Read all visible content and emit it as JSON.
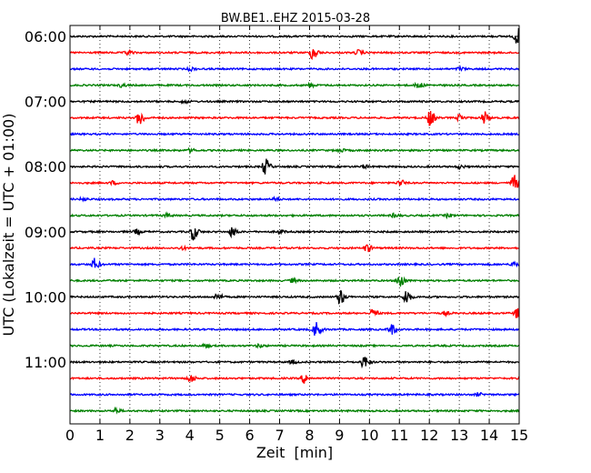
{
  "chart_data": {
    "type": "line",
    "title": "BW.BE1..EHZ 2015-03-28",
    "xlabel": "Zeit  [min]",
    "ylabel": "UTC (Lokalzeit = UTC + 01:00)",
    "xlim": [
      0,
      15
    ],
    "x_ticks": [
      0,
      1,
      2,
      3,
      4,
      5,
      6,
      7,
      8,
      9,
      10,
      11,
      12,
      13,
      14,
      15
    ],
    "x_tick_labels": [
      "0",
      "1",
      "2",
      "3",
      "4",
      "5",
      "6",
      "7",
      "8",
      "9",
      "10",
      "11",
      "12",
      "13",
      "14",
      "15"
    ],
    "y_tick_labels": [
      "06:00",
      "07:00",
      "08:00",
      "09:00",
      "10:00",
      "11:00"
    ],
    "y_tick_rows": [
      0,
      4,
      8,
      12,
      16,
      20
    ],
    "grid": "vertical dotted",
    "trace_colors": [
      "#000000",
      "#ff0000",
      "#0000ff",
      "#008000"
    ],
    "series": [
      {
        "values": [
          [
            14.9,
            1.0
          ]
        ]
      },
      {
        "values": [
          [
            8.1,
            0.9
          ],
          [
            1.9,
            0.3
          ],
          [
            9.6,
            0.3
          ]
        ]
      },
      {
        "values": [
          [
            4.0,
            0.2
          ],
          [
            13.0,
            0.2
          ]
        ]
      },
      {
        "values": [
          [
            1.7,
            0.2
          ],
          [
            8.0,
            0.2
          ],
          [
            11.6,
            0.4
          ]
        ]
      },
      {
        "values": [
          [
            3.8,
            0.2
          ]
        ]
      },
      {
        "values": [
          [
            2.3,
            1.0
          ],
          [
            12.0,
            1.0
          ],
          [
            13.0,
            0.4
          ],
          [
            13.8,
            0.8
          ]
        ]
      },
      {
        "values": []
      },
      {
        "values": [
          [
            4.0,
            0.2
          ],
          [
            9.0,
            0.2
          ]
        ]
      },
      {
        "values": [
          [
            6.5,
            1.0
          ],
          [
            9.8,
            0.2
          ],
          [
            13.0,
            0.2
          ]
        ]
      },
      {
        "values": [
          [
            1.4,
            0.2
          ],
          [
            11.0,
            0.4
          ],
          [
            14.8,
            1.0
          ]
        ]
      },
      {
        "values": [
          [
            0.4,
            0.2
          ],
          [
            6.8,
            0.2
          ]
        ]
      },
      {
        "values": [
          [
            3.2,
            0.2
          ],
          [
            10.8,
            0.2
          ],
          [
            12.6,
            0.2
          ]
        ]
      },
      {
        "values": [
          [
            2.2,
            0.3
          ],
          [
            4.1,
            1.0
          ],
          [
            5.4,
            0.6
          ],
          [
            7.0,
            0.2
          ]
        ]
      },
      {
        "values": [
          [
            9.9,
            0.5
          ],
          [
            3.7,
            0.2
          ]
        ]
      },
      {
        "values": [
          [
            0.8,
            0.7
          ],
          [
            14.8,
            0.3
          ]
        ]
      },
      {
        "values": [
          [
            11.0,
            1.0
          ],
          [
            7.4,
            0.2
          ]
        ]
      },
      {
        "values": [
          [
            4.9,
            0.4
          ],
          [
            9.0,
            1.0
          ],
          [
            11.2,
            0.9
          ]
        ]
      },
      {
        "values": [
          [
            10.1,
            0.5
          ],
          [
            12.5,
            0.2
          ],
          [
            14.9,
            0.6
          ]
        ]
      },
      {
        "values": [
          [
            8.2,
            1.0
          ],
          [
            10.7,
            0.7
          ]
        ]
      },
      {
        "values": [
          [
            4.5,
            0.2
          ],
          [
            6.3,
            0.2
          ]
        ]
      },
      {
        "values": [
          [
            9.8,
            0.8
          ],
          [
            7.4,
            0.2
          ]
        ]
      },
      {
        "values": [
          [
            4.0,
            0.5
          ],
          [
            7.8,
            0.6
          ]
        ]
      },
      {
        "values": [
          [
            13.6,
            0.2
          ]
        ]
      },
      {
        "values": [
          [
            1.5,
            0.3
          ]
        ]
      }
    ]
  }
}
